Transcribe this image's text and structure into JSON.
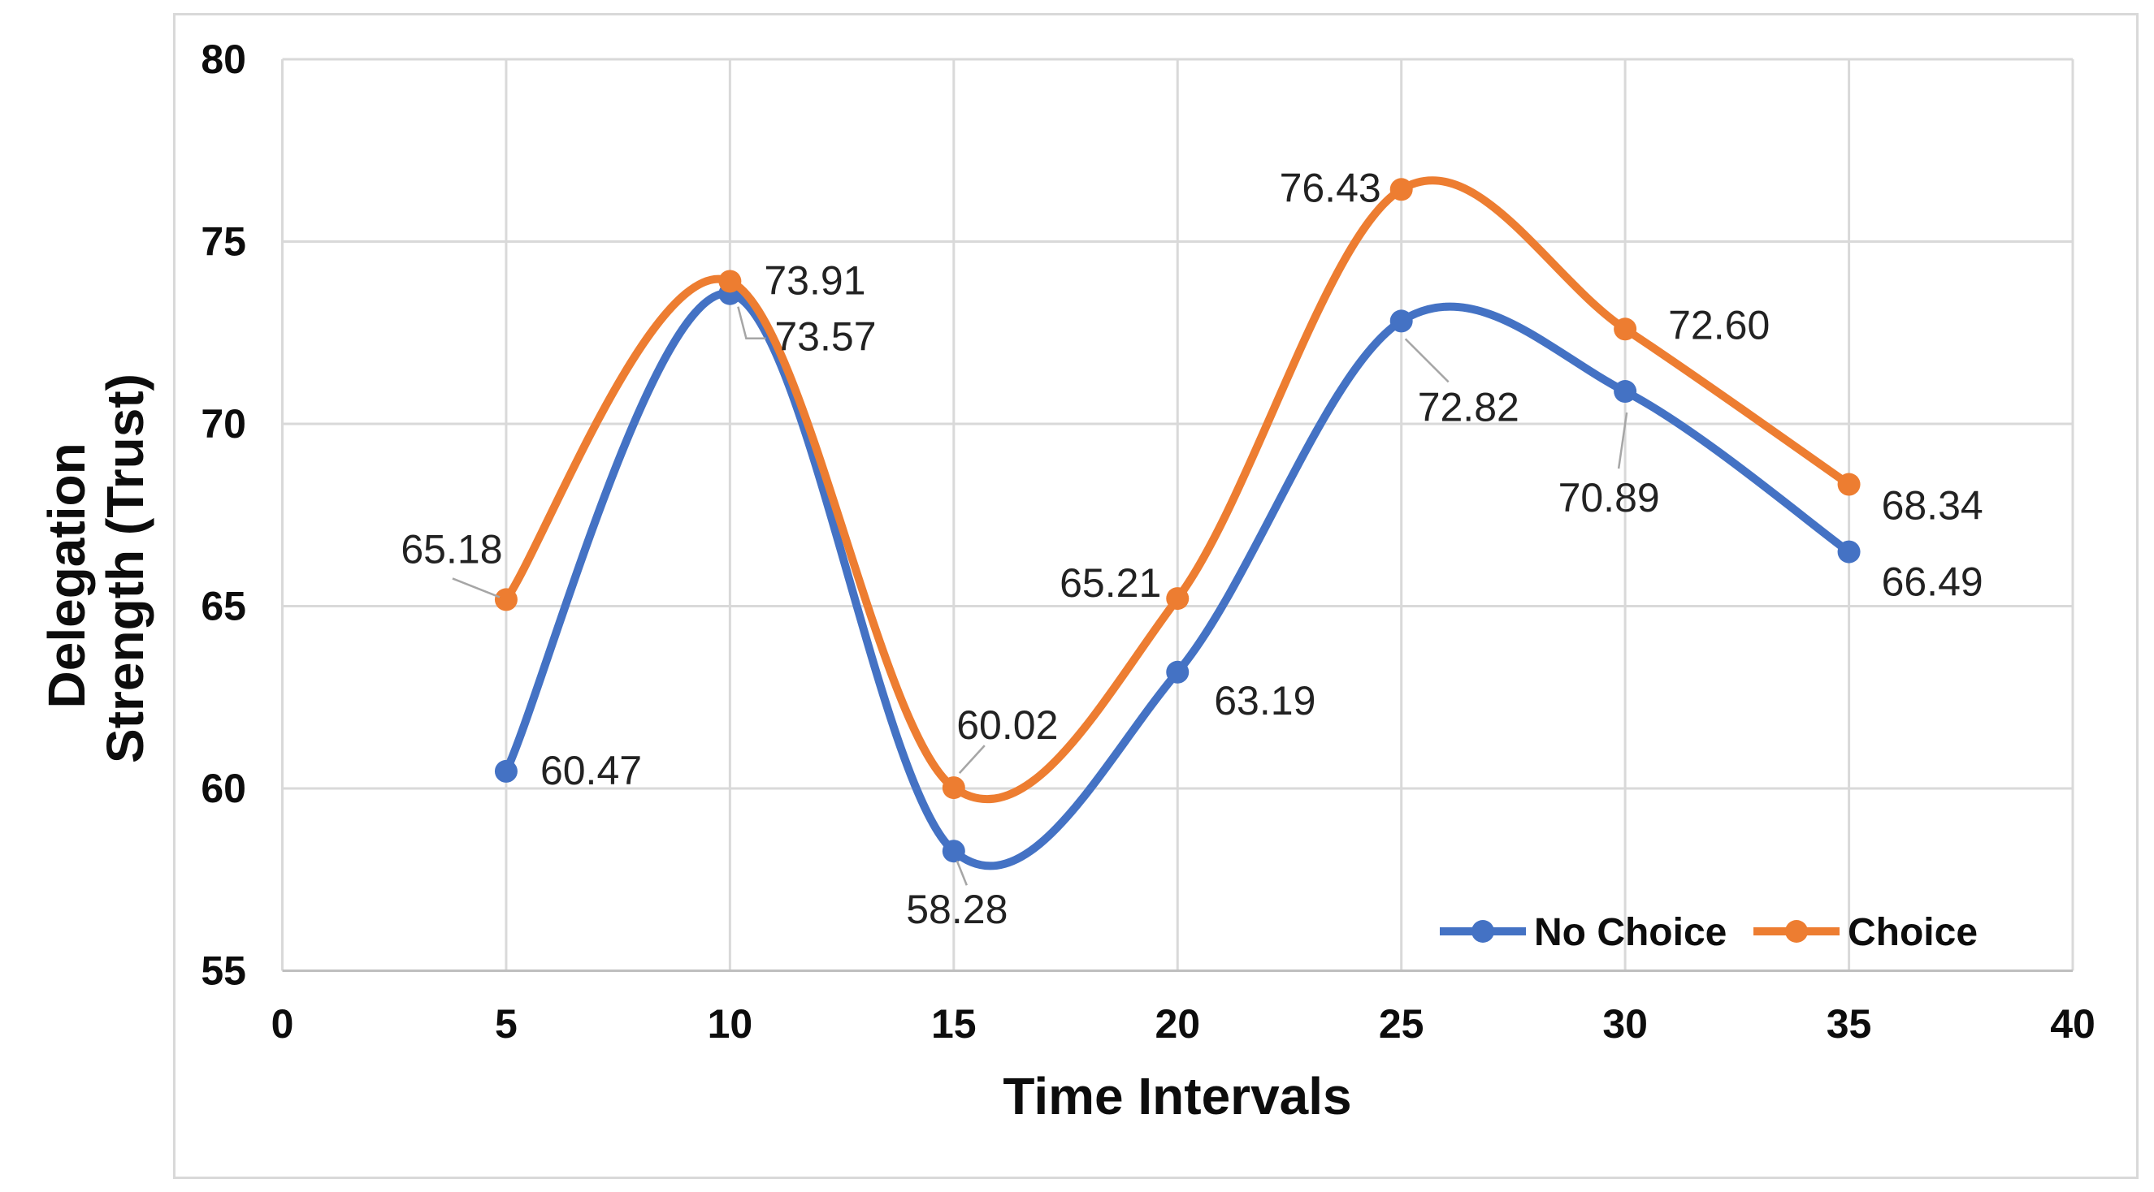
{
  "figure": {
    "background": "#FFFFFF",
    "frame_border_color": "#D9D9D9"
  },
  "chart_data": {
    "type": "line",
    "smooth": true,
    "marker": "circle",
    "title": "",
    "xlabel": "Time Intervals",
    "ylabel_lines": [
      "Delegation",
      "Strength (Trust)"
    ],
    "x": [
      5,
      10,
      15,
      20,
      25,
      30,
      35
    ],
    "series": [
      {
        "name": "No Choice",
        "color": "#4472C4",
        "values": [
          60.47,
          73.57,
          58.28,
          63.19,
          72.82,
          70.89,
          66.49
        ]
      },
      {
        "name": "Choice",
        "color": "#ED7D31",
        "values": [
          65.18,
          73.91,
          60.02,
          65.21,
          76.43,
          72.6,
          68.34
        ]
      }
    ],
    "xlim": [
      0,
      40
    ],
    "ylim": [
      55,
      80
    ],
    "x_ticks": [
      0,
      5,
      10,
      15,
      20,
      25,
      30,
      35,
      40
    ],
    "y_ticks": [
      55,
      60,
      65,
      70,
      75,
      80
    ],
    "grid": true,
    "gridline_color": "#D9D9D9",
    "axis_line_color": "#BFBFBF",
    "leader_line_color": "#A6A6A6",
    "data_label_decimals": 2,
    "legend_position": "inside-bottom-right",
    "legend_labels": [
      "No Choice",
      "Choice"
    ]
  }
}
